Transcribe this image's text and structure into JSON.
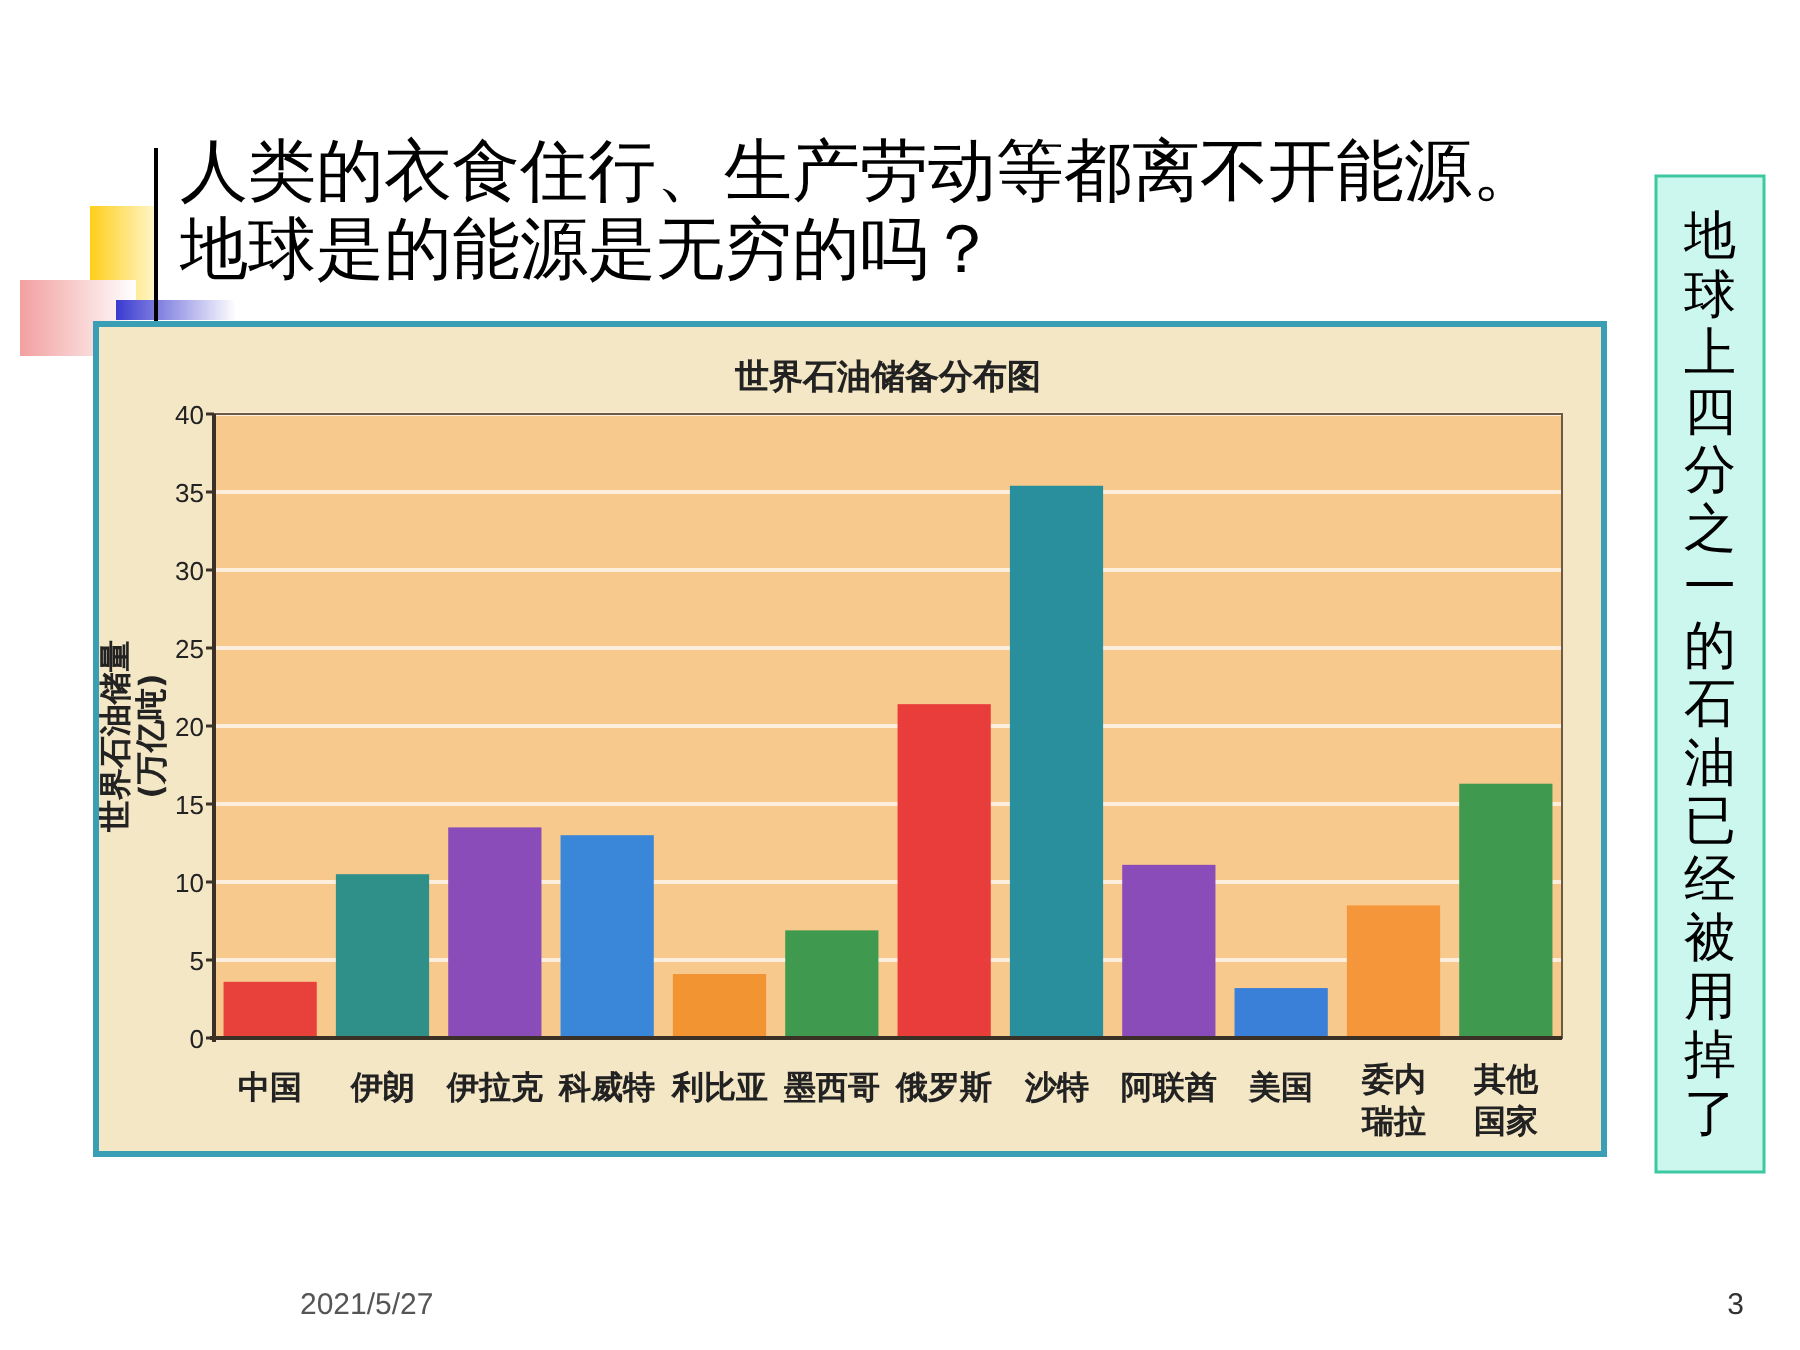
{
  "chart_data": {
    "type": "bar",
    "title": "世界石油储备分布图",
    "ylabel": "世界石油储量(万亿吨)",
    "categories": [
      "中国",
      "伊朗",
      "伊拉克",
      "科威特",
      "利比亚",
      "墨西哥",
      "俄罗斯",
      "沙特",
      "阿联酋",
      "美国",
      "委内瑞拉",
      "其他国家"
    ],
    "values": [
      3.6,
      10.5,
      13.5,
      13,
      4.1,
      6.9,
      21.4,
      35.4,
      11.1,
      3.2,
      8.5,
      16.3
    ],
    "colors": [
      "#e8413c",
      "#2e9088",
      "#8a4cb8",
      "#3a86d8",
      "#f39433",
      "#3f9a50",
      "#e83d3a",
      "#2a8f9c",
      "#8a4cb8",
      "#3a7fd8",
      "#f5963a",
      "#3f9a50"
    ],
    "ylim": [
      0,
      40
    ],
    "yticks": [
      0,
      5,
      10,
      15,
      20,
      25,
      30,
      35,
      40
    ],
    "grid": "y",
    "annotations": [
      "人类的衣食住行、生产劳动等都离不开能源。",
      "地球是的能源是无穷的吗？",
      "地球上四分之一的石油已经被用掉了",
      "2021/5/27",
      "3"
    ]
  }
}
